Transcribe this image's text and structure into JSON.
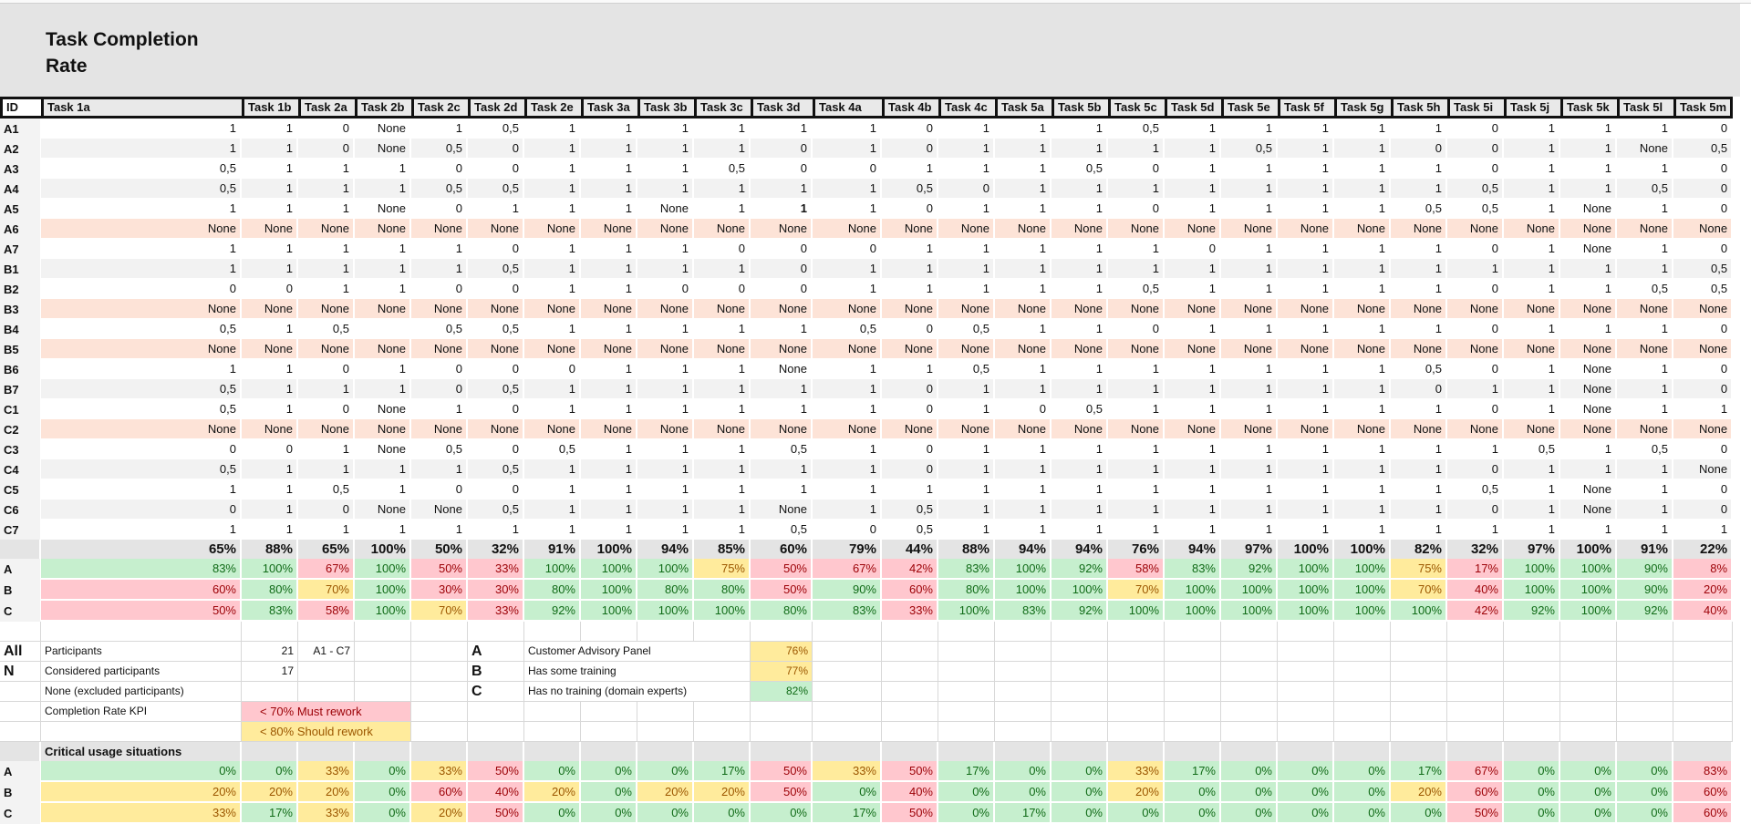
{
  "title_line1": "Task Completion",
  "title_line2": "Rate",
  "columns": [
    "ID",
    "Task 1a",
    "Task 1b",
    "Task 2a",
    "Task 2b",
    "Task 2c",
    "Task 2d",
    "Task 2e",
    "Task 3a",
    "Task 3b",
    "Task 3c",
    "Task 3d",
    "Task 4a",
    "Task 4b",
    "Task 4c",
    "Task 5a",
    "Task 5b",
    "Task 5c",
    "Task 5d",
    "Task 5e",
    "Task 5f",
    "Task 5g",
    "Task 5h",
    "Task 5i",
    "Task 5j",
    "Task 5k",
    "Task 5l",
    "Task 5m"
  ],
  "rows": [
    {
      "id": "A1",
      "excluded": false,
      "values": [
        "1",
        "1",
        "0",
        "None",
        "1",
        "0,5",
        "1",
        "1",
        "1",
        "1",
        "1",
        "1",
        "0",
        "1",
        "1",
        "1",
        "0,5",
        "1",
        "1",
        "1",
        "1",
        "1",
        "0",
        "1",
        "1",
        "1",
        "0"
      ]
    },
    {
      "id": "A2",
      "excluded": false,
      "values": [
        "1",
        "1",
        "0",
        "None",
        "0,5",
        "0",
        "1",
        "1",
        "1",
        "1",
        "0",
        "1",
        "0",
        "1",
        "1",
        "1",
        "1",
        "1",
        "0,5",
        "1",
        "1",
        "0",
        "0",
        "1",
        "1",
        "None",
        "0,5"
      ]
    },
    {
      "id": "A3",
      "excluded": false,
      "values": [
        "0,5",
        "1",
        "1",
        "1",
        "0",
        "0",
        "1",
        "1",
        "1",
        "0,5",
        "0",
        "0",
        "1",
        "1",
        "1",
        "0,5",
        "0",
        "1",
        "1",
        "1",
        "1",
        "1",
        "0",
        "1",
        "1",
        "1",
        "0"
      ]
    },
    {
      "id": "A4",
      "excluded": false,
      "values": [
        "0,5",
        "1",
        "1",
        "1",
        "0,5",
        "0,5",
        "1",
        "1",
        "1",
        "1",
        "1",
        "1",
        "0,5",
        "0",
        "1",
        "1",
        "1",
        "1",
        "1",
        "1",
        "1",
        "1",
        "0,5",
        "1",
        "1",
        "0,5",
        "0"
      ]
    },
    {
      "id": "A5",
      "excluded": false,
      "values": [
        "1",
        "1",
        "1",
        "None",
        "0",
        "1",
        "1",
        "1",
        "None",
        "1",
        "1",
        "1",
        "0",
        "1",
        "1",
        "1",
        "0",
        "1",
        "1",
        "1",
        "1",
        "0,5",
        "0,5",
        "1",
        "None",
        "1",
        "0"
      ]
    },
    {
      "id": "A6",
      "excluded": true,
      "values": [
        "None",
        "None",
        "None",
        "None",
        "None",
        "None",
        "None",
        "None",
        "None",
        "None",
        "None",
        "None",
        "None",
        "None",
        "None",
        "None",
        "None",
        "None",
        "None",
        "None",
        "None",
        "None",
        "None",
        "None",
        "None",
        "None",
        "None"
      ]
    },
    {
      "id": "A7",
      "excluded": false,
      "values": [
        "1",
        "1",
        "1",
        "1",
        "1",
        "0",
        "1",
        "1",
        "1",
        "0",
        "0",
        "0",
        "1",
        "1",
        "1",
        "1",
        "1",
        "0",
        "1",
        "1",
        "1",
        "1",
        "0",
        "1",
        "None",
        "1",
        "0"
      ]
    },
    {
      "id": "B1",
      "excluded": false,
      "values": [
        "1",
        "1",
        "1",
        "1",
        "1",
        "0,5",
        "1",
        "1",
        "1",
        "1",
        "0",
        "1",
        "1",
        "1",
        "1",
        "1",
        "1",
        "1",
        "1",
        "1",
        "1",
        "1",
        "1",
        "1",
        "1",
        "1",
        "0,5"
      ]
    },
    {
      "id": "B2",
      "excluded": false,
      "values": [
        "0",
        "0",
        "1",
        "1",
        "0",
        "0",
        "1",
        "1",
        "0",
        "0",
        "0",
        "1",
        "1",
        "1",
        "1",
        "1",
        "0,5",
        "1",
        "1",
        "1",
        "1",
        "1",
        "0",
        "1",
        "1",
        "0,5",
        "0,5"
      ]
    },
    {
      "id": "B3",
      "excluded": true,
      "values": [
        "None",
        "None",
        "None",
        "None",
        "None",
        "None",
        "None",
        "None",
        "None",
        "None",
        "None",
        "None",
        "None",
        "None",
        "None",
        "None",
        "None",
        "None",
        "None",
        "None",
        "None",
        "None",
        "None",
        "None",
        "None",
        "None",
        "None"
      ]
    },
    {
      "id": "B4",
      "excluded": false,
      "values": [
        "0,5",
        "1",
        "0,5",
        "",
        "0,5",
        "0,5",
        "1",
        "1",
        "1",
        "1",
        "1",
        "0,5",
        "0",
        "0,5",
        "1",
        "1",
        "0",
        "1",
        "1",
        "1",
        "1",
        "1",
        "0",
        "1",
        "1",
        "1",
        "0"
      ]
    },
    {
      "id": "B5",
      "excluded": true,
      "values": [
        "None",
        "None",
        "None",
        "None",
        "None",
        "None",
        "None",
        "None",
        "None",
        "None",
        "None",
        "None",
        "None",
        "None",
        "None",
        "None",
        "None",
        "None",
        "None",
        "None",
        "None",
        "None",
        "None",
        "None",
        "None",
        "None",
        "None"
      ]
    },
    {
      "id": "B6",
      "excluded": false,
      "values": [
        "1",
        "1",
        "0",
        "1",
        "0",
        "0",
        "0",
        "1",
        "1",
        "1",
        "None",
        "1",
        "1",
        "0,5",
        "1",
        "1",
        "1",
        "1",
        "1",
        "1",
        "1",
        "0,5",
        "0",
        "1",
        "None",
        "1",
        "0"
      ]
    },
    {
      "id": "B7",
      "excluded": false,
      "values": [
        "0,5",
        "1",
        "1",
        "1",
        "0",
        "0,5",
        "1",
        "1",
        "1",
        "1",
        "1",
        "1",
        "0",
        "1",
        "1",
        "1",
        "1",
        "1",
        "1",
        "1",
        "1",
        "0",
        "1",
        "1",
        "None",
        "1",
        "0"
      ]
    },
    {
      "id": "C1",
      "excluded": false,
      "values": [
        "0,5",
        "1",
        "0",
        "None",
        "1",
        "0",
        "1",
        "1",
        "1",
        "1",
        "1",
        "1",
        "0",
        "1",
        "0",
        "0,5",
        "1",
        "1",
        "1",
        "1",
        "1",
        "1",
        "0",
        "1",
        "None",
        "1",
        "1"
      ]
    },
    {
      "id": "C2",
      "excluded": true,
      "values": [
        "None",
        "None",
        "None",
        "None",
        "None",
        "None",
        "None",
        "None",
        "None",
        "None",
        "None",
        "None",
        "None",
        "None",
        "None",
        "None",
        "None",
        "None",
        "None",
        "None",
        "None",
        "None",
        "None",
        "None",
        "None",
        "None",
        "None"
      ]
    },
    {
      "id": "C3",
      "excluded": false,
      "values": [
        "0",
        "0",
        "1",
        "None",
        "0,5",
        "0",
        "0,5",
        "1",
        "1",
        "1",
        "0,5",
        "1",
        "0",
        "1",
        "1",
        "1",
        "1",
        "1",
        "1",
        "1",
        "1",
        "1",
        "1",
        "0,5",
        "1",
        "0,5",
        "0"
      ]
    },
    {
      "id": "C4",
      "excluded": false,
      "values": [
        "0,5",
        "1",
        "1",
        "1",
        "1",
        "0,5",
        "1",
        "1",
        "1",
        "1",
        "1",
        "1",
        "0",
        "1",
        "1",
        "1",
        "1",
        "1",
        "1",
        "1",
        "1",
        "1",
        "0",
        "1",
        "1",
        "1",
        "None"
      ]
    },
    {
      "id": "C5",
      "excluded": false,
      "values": [
        "1",
        "1",
        "0,5",
        "1",
        "0",
        "0",
        "1",
        "1",
        "1",
        "1",
        "1",
        "1",
        "1",
        "1",
        "1",
        "1",
        "1",
        "1",
        "1",
        "1",
        "1",
        "1",
        "0,5",
        "1",
        "None",
        "1",
        "0"
      ]
    },
    {
      "id": "C6",
      "excluded": false,
      "values": [
        "0",
        "1",
        "0",
        "None",
        "None",
        "0,5",
        "1",
        "1",
        "1",
        "1",
        "None",
        "1",
        "0,5",
        "1",
        "1",
        "1",
        "1",
        "1",
        "1",
        "1",
        "1",
        "1",
        "0",
        "1",
        "None",
        "1",
        "0"
      ]
    },
    {
      "id": "C7",
      "excluded": false,
      "values": [
        "1",
        "1",
        "1",
        "1",
        "1",
        "1",
        "1",
        "1",
        "1",
        "1",
        "0,5",
        "0",
        "0,5",
        "1",
        "1",
        "1",
        "1",
        "1",
        "1",
        "1",
        "1",
        "1",
        "1",
        "1",
        "1",
        "1",
        "1"
      ]
    }
  ],
  "totals": [
    "65%",
    "88%",
    "65%",
    "100%",
    "50%",
    "32%",
    "91%",
    "100%",
    "94%",
    "85%",
    "60%",
    "79%",
    "44%",
    "88%",
    "94%",
    "94%",
    "76%",
    "94%",
    "97%",
    "100%",
    "100%",
    "82%",
    "32%",
    "97%",
    "100%",
    "91%",
    "22%"
  ],
  "group_rates": [
    {
      "id": "A",
      "values": [
        "83%",
        "100%",
        "67%",
        "100%",
        "50%",
        "33%",
        "100%",
        "100%",
        "100%",
        "75%",
        "50%",
        "67%",
        "42%",
        "83%",
        "100%",
        "92%",
        "58%",
        "83%",
        "92%",
        "100%",
        "100%",
        "75%",
        "17%",
        "100%",
        "100%",
        "90%",
        "8%"
      ],
      "status": [
        "g",
        "g",
        "r",
        "g",
        "r",
        "r",
        "g",
        "g",
        "g",
        "y",
        "r",
        "r",
        "r",
        "g",
        "g",
        "g",
        "r",
        "g",
        "g",
        "g",
        "g",
        "y",
        "r",
        "g",
        "g",
        "g",
        "r"
      ]
    },
    {
      "id": "B",
      "values": [
        "60%",
        "80%",
        "70%",
        "100%",
        "30%",
        "30%",
        "80%",
        "100%",
        "80%",
        "80%",
        "50%",
        "90%",
        "60%",
        "80%",
        "100%",
        "100%",
        "70%",
        "100%",
        "100%",
        "100%",
        "100%",
        "70%",
        "40%",
        "100%",
        "100%",
        "90%",
        "20%"
      ],
      "status": [
        "r",
        "g",
        "y",
        "g",
        "r",
        "r",
        "g",
        "g",
        "g",
        "g",
        "r",
        "g",
        "r",
        "g",
        "g",
        "g",
        "y",
        "g",
        "g",
        "g",
        "g",
        "y",
        "r",
        "g",
        "g",
        "g",
        "r"
      ]
    },
    {
      "id": "C",
      "values": [
        "50%",
        "83%",
        "58%",
        "100%",
        "70%",
        "33%",
        "92%",
        "100%",
        "100%",
        "100%",
        "80%",
        "83%",
        "33%",
        "100%",
        "83%",
        "92%",
        "100%",
        "100%",
        "100%",
        "100%",
        "100%",
        "100%",
        "42%",
        "92%",
        "100%",
        "92%",
        "40%"
      ],
      "status": [
        "r",
        "g",
        "r",
        "g",
        "y",
        "r",
        "g",
        "g",
        "g",
        "g",
        "g",
        "g",
        "r",
        "g",
        "g",
        "g",
        "g",
        "g",
        "g",
        "g",
        "g",
        "g",
        "r",
        "g",
        "g",
        "g",
        "r"
      ]
    }
  ],
  "info": {
    "all_label": "All",
    "n_label": "N",
    "participants_label": "Participants",
    "participants_value": "21",
    "participants_range": "A1 - C7",
    "considered_label": "Considered participants",
    "considered_value": "17",
    "none_label": "None (excluded participants)",
    "kpi_label": "Completion Rate KPI",
    "kpi_must": "< 70%  Must rework",
    "kpi_should": "< 80%  Should rework",
    "groups": [
      {
        "id": "A",
        "label": "Customer Advisory Panel",
        "rate": "76%",
        "status": "y"
      },
      {
        "id": "B",
        "label": "Has some training",
        "rate": "77%",
        "status": "y"
      },
      {
        "id": "C",
        "label": "Has no training (domain experts)",
        "rate": "82%",
        "status": "g"
      }
    ]
  },
  "critical": {
    "title": "Critical usage situations",
    "rows": [
      {
        "id": "A",
        "values": [
          "0%",
          "0%",
          "33%",
          "0%",
          "33%",
          "50%",
          "0%",
          "0%",
          "0%",
          "17%",
          "50%",
          "33%",
          "50%",
          "17%",
          "0%",
          "0%",
          "33%",
          "17%",
          "0%",
          "0%",
          "0%",
          "17%",
          "67%",
          "0%",
          "0%",
          "0%",
          "83%"
        ],
        "status": [
          "g",
          "g",
          "y",
          "g",
          "y",
          "r",
          "g",
          "g",
          "g",
          "g",
          "r",
          "y",
          "r",
          "g",
          "g",
          "g",
          "y",
          "g",
          "g",
          "g",
          "g",
          "g",
          "r",
          "g",
          "g",
          "g",
          "r"
        ]
      },
      {
        "id": "B",
        "values": [
          "20%",
          "20%",
          "20%",
          "0%",
          "60%",
          "40%",
          "20%",
          "0%",
          "20%",
          "20%",
          "50%",
          "0%",
          "40%",
          "0%",
          "0%",
          "0%",
          "20%",
          "0%",
          "0%",
          "0%",
          "0%",
          "20%",
          "60%",
          "0%",
          "0%",
          "0%",
          "60%"
        ],
        "status": [
          "y",
          "y",
          "y",
          "g",
          "r",
          "r",
          "y",
          "g",
          "y",
          "y",
          "r",
          "g",
          "r",
          "g",
          "g",
          "g",
          "y",
          "g",
          "g",
          "g",
          "g",
          "y",
          "r",
          "g",
          "g",
          "g",
          "r"
        ]
      },
      {
        "id": "C",
        "values": [
          "33%",
          "17%",
          "33%",
          "0%",
          "20%",
          "50%",
          "0%",
          "0%",
          "0%",
          "0%",
          "0%",
          "17%",
          "50%",
          "0%",
          "17%",
          "0%",
          "0%",
          "0%",
          "0%",
          "0%",
          "0%",
          "0%",
          "50%",
          "0%",
          "0%",
          "0%",
          "60%"
        ],
        "status": [
          "y",
          "g",
          "y",
          "g",
          "y",
          "r",
          "g",
          "g",
          "g",
          "g",
          "g",
          "g",
          "r",
          "g",
          "g",
          "g",
          "g",
          "g",
          "g",
          "g",
          "g",
          "g",
          "r",
          "g",
          "g",
          "g",
          "r"
        ]
      }
    ]
  },
  "colors": {
    "good_bg": "#c6efce",
    "good_fg": "#106b17",
    "warn_bg": "#ffeb9c",
    "warn_fg": "#9c5700",
    "bad_bg": "#ffc7ce",
    "bad_fg": "#9c0006",
    "excluded_bg": "#fde3d7",
    "header_bg": "#e4e4e4"
  }
}
